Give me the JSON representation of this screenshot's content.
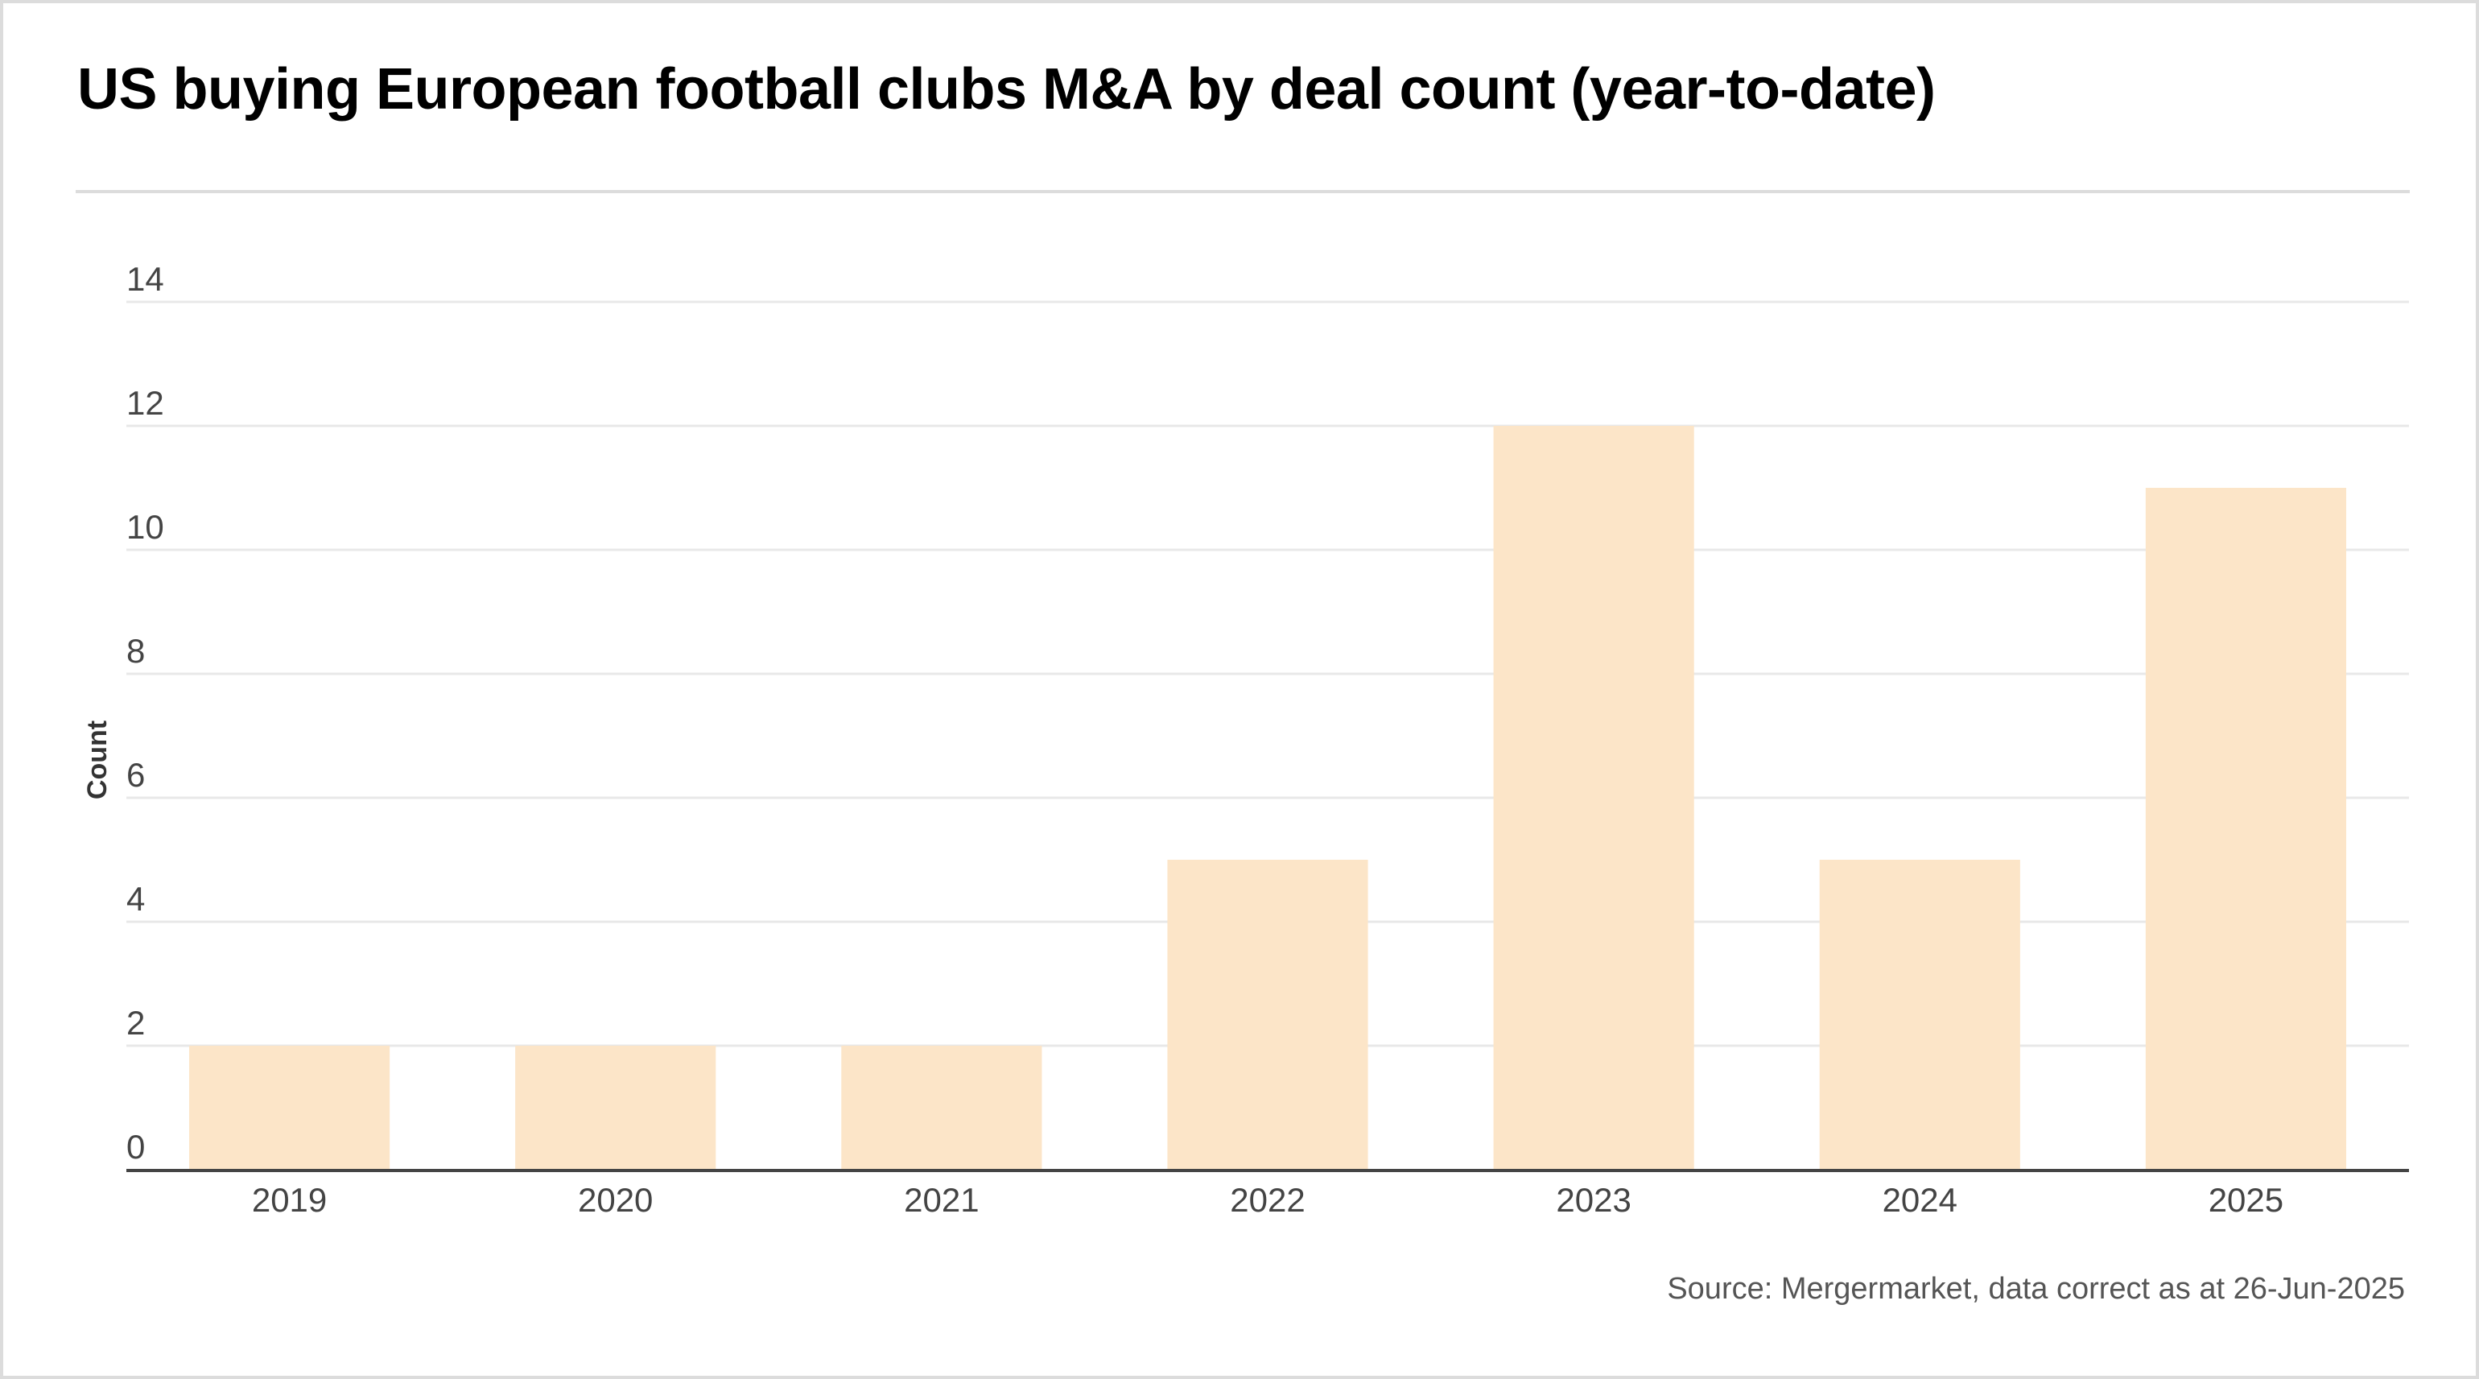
{
  "chart_data": {
    "type": "bar",
    "title": "US buying European football clubs M&A by deal count (year-to-date)",
    "categories": [
      "2019",
      "2020",
      "2021",
      "2022",
      "2023",
      "2024",
      "2025"
    ],
    "values": [
      2,
      2,
      2,
      5,
      12,
      5,
      11
    ],
    "xlabel": "",
    "ylabel": "Count",
    "ylim": [
      0,
      14
    ],
    "yticks": [
      0,
      2,
      4,
      6,
      8,
      10,
      12,
      14
    ],
    "ytick_labels": [
      "0",
      "2",
      "4",
      "6",
      "8",
      "10",
      "12",
      "14"
    ],
    "grid": true,
    "legend": "none",
    "bar_color": "#FCE5C8",
    "source": "Source: Mergermarket, data correct as at 26-Jun-2025"
  }
}
